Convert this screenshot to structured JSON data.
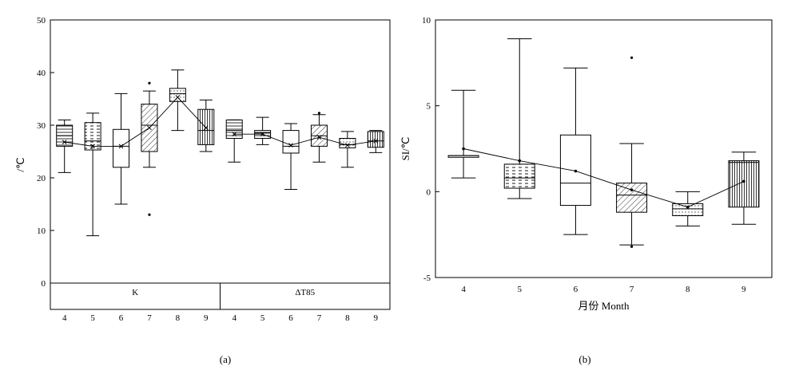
{
  "chart_data": [
    {
      "panel": "(a)",
      "type": "box",
      "ylabel": "/℃",
      "ylim": [
        -5,
        50
      ],
      "yticks": [
        0,
        10,
        20,
        30,
        40,
        50
      ],
      "groups": [
        "K",
        "ΔT85"
      ],
      "categories": [
        "4",
        "5",
        "6",
        "7",
        "8",
        "9",
        "4",
        "5",
        "6",
        "7",
        "8",
        "9"
      ],
      "boxes": [
        {
          "group": "K",
          "month": "4",
          "min": 21,
          "q1": 26,
          "median": 28,
          "q3": 30,
          "max": 31,
          "mean": 26.8,
          "fill": "hlines",
          "outliers": []
        },
        {
          "group": "K",
          "month": "5",
          "min": 9,
          "q1": 25.3,
          "median": 27,
          "q3": 30.5,
          "max": 32.3,
          "mean": 26,
          "fill": "dashes",
          "outliers": []
        },
        {
          "group": "K",
          "month": "6",
          "min": 15,
          "q1": 22,
          "median": 26,
          "q3": 29.2,
          "max": 36,
          "mean": 26,
          "fill": "none",
          "outliers": []
        },
        {
          "group": "K",
          "month": "7",
          "min": 22,
          "q1": 25,
          "median": 30,
          "q3": 34,
          "max": 36.5,
          "mean": 29.5,
          "fill": "diag",
          "outliers": [
            38,
            13
          ]
        },
        {
          "group": "K",
          "month": "8",
          "min": 29,
          "q1": 34.5,
          "median": 36,
          "q3": 37,
          "max": 40.5,
          "mean": 35.3,
          "fill": "dots",
          "outliers": []
        },
        {
          "group": "K",
          "month": "9",
          "min": 25,
          "q1": 26.3,
          "median": 29,
          "q3": 33,
          "max": 34.8,
          "mean": 29.5,
          "fill": "vlines",
          "outliers": []
        },
        {
          "group": "ΔT85",
          "month": "4",
          "min": 23,
          "q1": 27.5,
          "median": 29,
          "q3": 31,
          "max": 31,
          "mean": 28.3,
          "fill": "hlines",
          "outliers": []
        },
        {
          "group": "ΔT85",
          "month": "5",
          "min": 26.3,
          "q1": 27.5,
          "median": 28.5,
          "q3": 29,
          "max": 31.5,
          "mean": 28.3,
          "fill": "hlines",
          "outliers": []
        },
        {
          "group": "ΔT85",
          "month": "6",
          "min": 17.8,
          "q1": 24.7,
          "median": 26,
          "q3": 29,
          "max": 30.3,
          "mean": 26.2,
          "fill": "none",
          "outliers": []
        },
        {
          "group": "ΔT85",
          "month": "7",
          "min": 23,
          "q1": 26,
          "median": 28,
          "q3": 30,
          "max": 32,
          "mean": 27.7,
          "fill": "diag",
          "outliers": [
            32.3
          ]
        },
        {
          "group": "ΔT85",
          "month": "8",
          "min": 22,
          "q1": 25.7,
          "median": 26.3,
          "q3": 27.5,
          "max": 28.8,
          "mean": 26.2,
          "fill": "dots",
          "outliers": []
        },
        {
          "group": "ΔT85",
          "month": "9",
          "min": 24.8,
          "q1": 25.8,
          "median": 27,
          "q3": 28.8,
          "max": 29,
          "mean": 27,
          "fill": "vlines",
          "outliers": []
        }
      ]
    },
    {
      "panel": "(b)",
      "type": "box",
      "ylabel": "SI/℃",
      "xlabel": "月份  Month",
      "ylim": [
        -5,
        10
      ],
      "yticks": [
        -5,
        0,
        5,
        10
      ],
      "categories": [
        "4",
        "5",
        "6",
        "7",
        "8",
        "9"
      ],
      "boxes": [
        {
          "month": "4",
          "min": 0.8,
          "q1": 2.0,
          "median": 2.1,
          "q3": 2.1,
          "max": 5.9,
          "mean": 2.5,
          "fill": "none",
          "outliers": []
        },
        {
          "month": "5",
          "min": -0.4,
          "q1": 0.2,
          "median": 0.8,
          "q3": 1.6,
          "max": 8.9,
          "mean": 1.8,
          "fill": "dashes",
          "outliers": []
        },
        {
          "month": "6",
          "min": -2.5,
          "q1": -0.8,
          "median": 0.5,
          "q3": 3.3,
          "max": 7.2,
          "mean": 1.2,
          "fill": "none",
          "outliers": []
        },
        {
          "month": "7",
          "min": -3.1,
          "q1": -1.2,
          "median": -0.2,
          "q3": 0.5,
          "max": 2.8,
          "mean": 0.1,
          "fill": "diag",
          "outliers": [
            7.8,
            -3.2
          ]
        },
        {
          "month": "8",
          "min": -2.0,
          "q1": -1.4,
          "median": -1.0,
          "q3": -0.7,
          "max": 0.0,
          "mean": -0.9,
          "fill": "dots",
          "outliers": []
        },
        {
          "month": "9",
          "min": -1.9,
          "q1": -0.9,
          "median": 1.7,
          "q3": 1.8,
          "max": 2.3,
          "mean": 0.6,
          "fill": "vlines",
          "outliers": []
        }
      ]
    }
  ],
  "captions": {
    "a": "(a)",
    "b": "(b)"
  }
}
